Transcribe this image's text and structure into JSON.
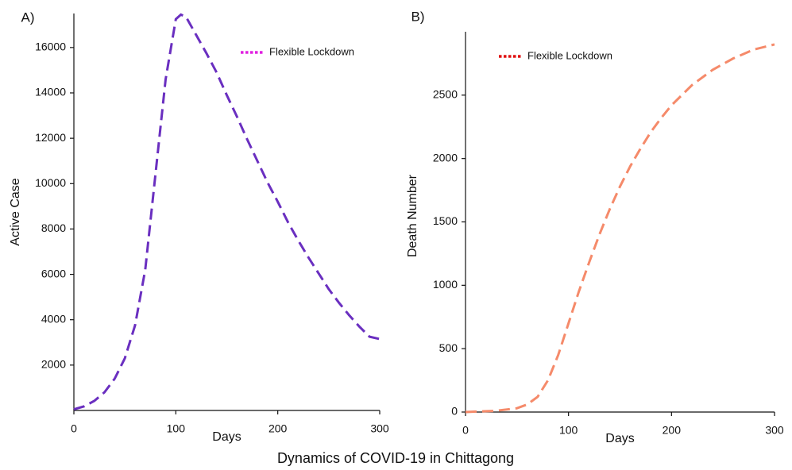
{
  "caption": "Dynamics of COVID-19 in Chittagong",
  "chart_data": [
    {
      "type": "line",
      "panel_label": "A)",
      "x_label": "Days",
      "y_label": "Active Case",
      "x": [
        0,
        10,
        20,
        30,
        40,
        50,
        60,
        70,
        80,
        90,
        100,
        105,
        110,
        120,
        130,
        140,
        150,
        160,
        170,
        180,
        190,
        200,
        210,
        220,
        230,
        240,
        250,
        260,
        270,
        280,
        290,
        300
      ],
      "series": [
        {
          "name": "Flexible Lockdown",
          "color": "#6a2fc0",
          "legend_color": "#e020e0",
          "values": [
            50,
            180,
            420,
            800,
            1400,
            2300,
            3750,
            6200,
            10400,
            14600,
            17250,
            17450,
            17350,
            16550,
            15750,
            14900,
            13900,
            12950,
            11950,
            11000,
            10050,
            9200,
            8300,
            7500,
            6750,
            6050,
            5350,
            4750,
            4200,
            3700,
            3250,
            3150
          ]
        }
      ],
      "xlim": [
        0,
        300
      ],
      "xticks": [
        0,
        100,
        200,
        300
      ],
      "ylim": [
        0,
        17500
      ],
      "yticks": [
        2000,
        4000,
        6000,
        8000,
        10000,
        12000,
        14000,
        16000
      ]
    },
    {
      "type": "line",
      "panel_label": "B)",
      "x_label": "Days",
      "y_label": "Death Number",
      "x": [
        0,
        30,
        50,
        60,
        70,
        80,
        90,
        100,
        110,
        120,
        130,
        140,
        150,
        160,
        170,
        180,
        190,
        200,
        220,
        240,
        260,
        280,
        300
      ],
      "series": [
        {
          "name": "Flexible Lockdown",
          "color": "#f58a6a",
          "legend_color": "#e01010",
          "values": [
            0,
            10,
            30,
            60,
            120,
            250,
            450,
            700,
            950,
            1180,
            1400,
            1600,
            1780,
            1940,
            2080,
            2210,
            2320,
            2420,
            2580,
            2700,
            2790,
            2860,
            2900
          ]
        }
      ],
      "xlim": [
        0,
        300
      ],
      "xticks": [
        0,
        100,
        200,
        300
      ],
      "ylim": [
        0,
        3000
      ],
      "yticks": [
        0,
        500,
        1000,
        1500,
        2000,
        2500
      ]
    }
  ]
}
